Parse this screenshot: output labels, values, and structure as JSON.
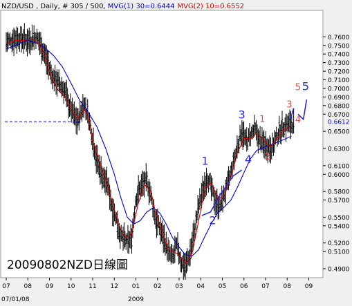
{
  "header": {
    "symbol": "NZD/USD",
    "info": " , Daily, # 305 / 500, ",
    "mvg1": "MVG(1) 30=0.6444",
    "mvg2": "MVG(2) 10=0.6552"
  },
  "watermark": "20090802NZD日線圖",
  "colors": {
    "background": "#ffffff",
    "price_bars": "#000000",
    "mvg1": "#0000cc",
    "mvg2": "#cc0000",
    "wave_blue": "#2a2ad0",
    "wave_red": "#e05050",
    "price_marker": "#0000cc"
  },
  "chart_data": {
    "type": "line",
    "title": "NZD/USD , Daily, # 305 / 500",
    "xlabel": "",
    "ylabel": "",
    "ylim": [
      0.486,
      0.778
    ],
    "y_ticks": [
      "0.7600",
      "0.7500",
      "0.7400",
      "0.7300",
      "0.7200",
      "0.7100",
      "0.7000",
      "0.6900",
      "0.6800",
      "0.6700",
      "0.6500",
      "0.6300",
      "0.6100",
      "0.6000",
      "0.5800",
      "0.5700",
      "0.5500",
      "0.5400",
      "0.5200",
      "0.5100",
      "0.4900"
    ],
    "current_price": "0.6612",
    "x_ticks": [
      "07",
      "08",
      "09",
      "10",
      "11",
      "12",
      "01",
      "02",
      "03",
      "04",
      "05",
      "06",
      "07",
      "08",
      "09"
    ],
    "x_start_label": "07/01/08",
    "x_year_label": "2009",
    "x_range": [
      0,
      14.4
    ],
    "ohlc_envelope": [
      [
        0.0,
        0.752,
        0.756
      ],
      [
        0.5,
        0.756,
        0.762
      ],
      [
        1.0,
        0.753,
        0.758
      ],
      [
        1.4,
        0.758,
        0.762
      ],
      [
        1.6,
        0.748,
        0.753
      ],
      [
        1.8,
        0.735,
        0.742
      ],
      [
        2.1,
        0.712,
        0.718
      ],
      [
        2.4,
        0.704,
        0.71
      ],
      [
        2.7,
        0.696,
        0.7
      ],
      [
        2.9,
        0.678,
        0.684
      ],
      [
        3.1,
        0.668,
        0.672
      ],
      [
        3.3,
        0.658,
        0.664
      ],
      [
        3.6,
        0.68,
        0.686
      ],
      [
        3.8,
        0.665,
        0.67
      ],
      [
        4.0,
        0.638,
        0.645
      ],
      [
        4.2,
        0.61,
        0.62
      ],
      [
        4.5,
        0.59,
        0.6
      ],
      [
        4.7,
        0.585,
        0.59
      ],
      [
        4.9,
        0.56,
        0.565
      ],
      [
        5.1,
        0.545,
        0.55
      ],
      [
        5.3,
        0.525,
        0.53
      ],
      [
        5.6,
        0.518,
        0.523
      ],
      [
        5.8,
        0.522,
        0.528
      ],
      [
        6.0,
        0.57,
        0.575
      ],
      [
        6.2,
        0.582,
        0.587
      ],
      [
        6.5,
        0.59,
        0.595
      ],
      [
        6.7,
        0.572,
        0.578
      ],
      [
        6.9,
        0.545,
        0.552
      ],
      [
        7.1,
        0.535,
        0.54
      ],
      [
        7.3,
        0.522,
        0.528
      ],
      [
        7.5,
        0.506,
        0.512
      ],
      [
        7.7,
        0.5,
        0.505
      ],
      [
        7.9,
        0.515,
        0.52
      ],
      [
        8.1,
        0.495,
        0.5
      ],
      [
        8.3,
        0.491,
        0.495
      ],
      [
        8.5,
        0.505,
        0.51
      ],
      [
        8.7,
        0.53,
        0.535
      ],
      [
        8.9,
        0.56,
        0.565
      ],
      [
        9.1,
        0.578,
        0.583
      ],
      [
        9.3,
        0.595,
        0.6
      ],
      [
        9.5,
        0.58,
        0.585
      ],
      [
        9.7,
        0.565,
        0.57
      ],
      [
        9.9,
        0.56,
        0.565
      ],
      [
        10.1,
        0.575,
        0.58
      ],
      [
        10.3,
        0.59,
        0.595
      ],
      [
        10.5,
        0.61,
        0.615
      ],
      [
        10.7,
        0.63,
        0.635
      ],
      [
        10.9,
        0.648,
        0.654
      ],
      [
        11.1,
        0.635,
        0.64
      ],
      [
        11.3,
        0.642,
        0.648
      ],
      [
        11.5,
        0.65,
        0.655
      ],
      [
        11.7,
        0.638,
        0.643
      ],
      [
        11.9,
        0.632,
        0.638
      ],
      [
        12.1,
        0.63,
        0.635
      ],
      [
        12.3,
        0.628,
        0.633
      ],
      [
        12.5,
        0.64,
        0.645
      ],
      [
        12.7,
        0.65,
        0.655
      ],
      [
        12.9,
        0.654,
        0.66
      ],
      [
        13.1,
        0.656,
        0.6612
      ],
      [
        13.3,
        0.656,
        0.6612
      ]
    ],
    "series": [
      {
        "name": "MVG(1) 30",
        "points": [
          [
            0,
            0.746
          ],
          [
            0.5,
            0.751
          ],
          [
            1.0,
            0.756
          ],
          [
            1.4,
            0.753
          ],
          [
            1.8,
            0.747
          ],
          [
            2.2,
            0.738
          ],
          [
            2.6,
            0.725
          ],
          [
            3.0,
            0.706
          ],
          [
            3.4,
            0.686
          ],
          [
            3.8,
            0.672
          ],
          [
            4.2,
            0.655
          ],
          [
            4.6,
            0.63
          ],
          [
            5.0,
            0.6
          ],
          [
            5.3,
            0.573
          ],
          [
            5.6,
            0.55
          ],
          [
            5.9,
            0.542
          ],
          [
            6.2,
            0.546
          ],
          [
            6.5,
            0.556
          ],
          [
            6.8,
            0.561
          ],
          [
            7.1,
            0.555
          ],
          [
            7.4,
            0.542
          ],
          [
            7.7,
            0.526
          ],
          [
            8.0,
            0.515
          ],
          [
            8.3,
            0.506
          ],
          [
            8.6,
            0.505
          ],
          [
            8.9,
            0.512
          ],
          [
            9.2,
            0.528
          ],
          [
            9.5,
            0.543
          ],
          [
            9.8,
            0.556
          ],
          [
            10.1,
            0.562
          ],
          [
            10.4,
            0.57
          ],
          [
            10.7,
            0.585
          ],
          [
            11.0,
            0.602
          ],
          [
            11.3,
            0.618
          ],
          [
            11.6,
            0.628
          ],
          [
            12.0,
            0.632
          ],
          [
            12.4,
            0.636
          ],
          [
            12.8,
            0.64
          ],
          [
            13.2,
            0.6444
          ]
        ]
      },
      {
        "name": "MVG(2) 10",
        "points": [
          [
            0,
            0.752
          ],
          [
            0.4,
            0.756
          ],
          [
            0.8,
            0.756
          ],
          [
            1.2,
            0.757
          ],
          [
            1.5,
            0.752
          ],
          [
            1.8,
            0.736
          ],
          [
            2.1,
            0.712
          ],
          [
            2.4,
            0.698
          ],
          [
            2.7,
            0.69
          ],
          [
            3.0,
            0.677
          ],
          [
            3.3,
            0.664
          ],
          [
            3.6,
            0.676
          ],
          [
            3.8,
            0.666
          ],
          [
            4.0,
            0.64
          ],
          [
            4.3,
            0.615
          ],
          [
            4.6,
            0.593
          ],
          [
            4.9,
            0.568
          ],
          [
            5.2,
            0.542
          ],
          [
            5.5,
            0.526
          ],
          [
            5.8,
            0.53
          ],
          [
            6.1,
            0.565
          ],
          [
            6.4,
            0.588
          ],
          [
            6.7,
            0.58
          ],
          [
            6.9,
            0.556
          ],
          [
            7.2,
            0.534
          ],
          [
            7.5,
            0.512
          ],
          [
            7.8,
            0.509
          ],
          [
            8.0,
            0.506
          ],
          [
            8.3,
            0.496
          ],
          [
            8.6,
            0.508
          ],
          [
            8.9,
            0.545
          ],
          [
            9.2,
            0.585
          ],
          [
            9.5,
            0.59
          ],
          [
            9.8,
            0.57
          ],
          [
            10.1,
            0.576
          ],
          [
            10.4,
            0.597
          ],
          [
            10.7,
            0.625
          ],
          [
            11.0,
            0.642
          ],
          [
            11.3,
            0.641
          ],
          [
            11.6,
            0.648
          ],
          [
            11.9,
            0.64
          ],
          [
            12.2,
            0.632
          ],
          [
            12.5,
            0.64
          ],
          [
            12.8,
            0.651
          ],
          [
            13.1,
            0.6552
          ]
        ]
      }
    ],
    "annotations": [
      {
        "text": "1",
        "x": 9.2,
        "y": 0.611,
        "color": "blue"
      },
      {
        "text": "2",
        "x": 9.55,
        "y": 0.542,
        "color": "blue"
      },
      {
        "text": "3",
        "x": 10.9,
        "y": 0.665,
        "color": "blue"
      },
      {
        "text": "4",
        "x": 11.2,
        "y": 0.613,
        "color": "blue"
      },
      {
        "text": "1",
        "x": 11.85,
        "y": 0.661,
        "color": "red"
      },
      {
        "text": "2",
        "x": 12.1,
        "y": 0.617,
        "color": "red"
      },
      {
        "text": "3",
        "x": 13.1,
        "y": 0.678,
        "color": "red"
      },
      {
        "text": "4",
        "x": 13.5,
        "y": 0.66,
        "color": "red"
      },
      {
        "text": "5",
        "x": 13.5,
        "y": 0.698,
        "color": "red"
      },
      {
        "text": "5",
        "x": 13.85,
        "y": 0.698,
        "color": "blue"
      }
    ],
    "wave_paths": [
      {
        "color": "blue",
        "points": [
          [
            9.05,
            0.552
          ],
          [
            9.45,
            0.556
          ],
          [
            9.95,
            0.578
          ],
          [
            10.5,
            0.598
          ],
          [
            10.9,
            0.605
          ]
        ]
      },
      {
        "color": "blue",
        "points": [
          [
            13.15,
            0.664
          ],
          [
            13.3,
            0.677
          ]
        ]
      },
      {
        "color": "blue",
        "points": [
          [
            13.5,
            0.67
          ],
          [
            13.75,
            0.664
          ],
          [
            13.9,
            0.687
          ]
        ]
      }
    ],
    "grid": false,
    "legend": "top-left"
  }
}
